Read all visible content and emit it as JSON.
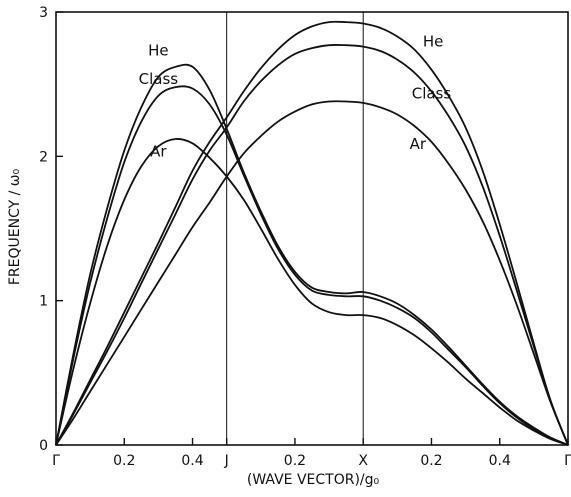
{
  "chart_data": {
    "type": "line",
    "title": "",
    "xlabel": "(WAVE VECTOR)/g₀",
    "ylabel": "FREQUENCY / ω₀",
    "ylim": [
      0,
      3
    ],
    "yticks": [
      0,
      1,
      2,
      3
    ],
    "xlim": [
      0,
      3
    ],
    "xticks": [
      {
        "x": 0,
        "label": "Γ"
      },
      {
        "x": 0.4,
        "label": "0.2"
      },
      {
        "x": 0.8,
        "label": "0.4"
      },
      {
        "x": 1.0,
        "label": "J"
      },
      {
        "x": 1.4,
        "label": "0.2"
      },
      {
        "x": 1.8,
        "label": "X"
      },
      {
        "x": 2.2,
        "label": "0.2"
      },
      {
        "x": 2.6,
        "label": "0.4"
      },
      {
        "x": 3.0,
        "label": "Γ"
      }
    ],
    "vlines": [
      1.0,
      1.8
    ],
    "grid": false,
    "legend": "none",
    "curve_labels": [
      {
        "text": "He",
        "x": 0.6,
        "y": 2.7
      },
      {
        "text": "Class",
        "x": 0.6,
        "y": 2.5
      },
      {
        "text": "Ar",
        "x": 0.6,
        "y": 2.0
      },
      {
        "text": "He",
        "x": 2.21,
        "y": 2.76
      },
      {
        "text": "Class",
        "x": 2.2,
        "y": 2.4
      },
      {
        "text": "Ar",
        "x": 2.12,
        "y": 2.05
      }
    ],
    "series": [
      {
        "x": [
          0,
          0.1,
          0.2,
          0.3,
          0.4,
          0.5,
          0.6,
          0.7,
          0.8,
          0.9,
          1.0,
          1.1,
          1.2,
          1.3,
          1.4,
          1.5,
          1.6,
          1.7,
          1.8,
          1.9,
          2.0,
          2.1,
          2.2,
          2.3,
          2.4,
          2.5,
          2.6,
          2.7,
          2.8,
          2.9,
          3.0
        ],
        "values": [
          0,
          0.62,
          1.18,
          1.64,
          2.04,
          2.34,
          2.55,
          2.62,
          2.62,
          2.46,
          2.19,
          1.89,
          1.62,
          1.38,
          1.2,
          1.09,
          1.06,
          1.05,
          1.06,
          1.03,
          0.98,
          0.9,
          0.8,
          0.68,
          0.55,
          0.42,
          0.3,
          0.2,
          0.12,
          0.05,
          0
        ]
      },
      {
        "x": [
          0,
          0.1,
          0.2,
          0.3,
          0.4,
          0.5,
          0.6,
          0.7,
          0.8,
          0.9,
          1.0,
          1.1,
          1.2,
          1.3,
          1.4,
          1.5,
          1.6,
          1.7,
          1.8,
          1.9,
          2.0,
          2.1,
          2.2,
          2.3,
          2.4,
          2.5,
          2.6,
          2.7,
          2.8,
          2.9,
          3.0
        ],
        "values": [
          0,
          0.59,
          1.12,
          1.57,
          1.96,
          2.24,
          2.42,
          2.48,
          2.47,
          2.36,
          2.15,
          1.87,
          1.6,
          1.36,
          1.18,
          1.07,
          1.04,
          1.03,
          1.03,
          1.0,
          0.95,
          0.88,
          0.78,
          0.66,
          0.54,
          0.41,
          0.29,
          0.19,
          0.11,
          0.05,
          0
        ]
      },
      {
        "x": [
          0,
          0.1,
          0.2,
          0.3,
          0.4,
          0.5,
          0.6,
          0.7,
          0.8,
          0.9,
          1.0,
          1.1,
          1.2,
          1.3,
          1.4,
          1.5,
          1.6,
          1.7,
          1.8,
          1.9,
          2.0,
          2.1,
          2.2,
          2.3,
          2.4,
          2.5,
          2.6,
          2.7,
          2.8,
          2.9,
          3.0
        ],
        "values": [
          0,
          0.52,
          0.98,
          1.38,
          1.7,
          1.93,
          2.07,
          2.12,
          2.09,
          1.99,
          1.86,
          1.7,
          1.5,
          1.29,
          1.11,
          0.98,
          0.92,
          0.9,
          0.9,
          0.88,
          0.83,
          0.76,
          0.67,
          0.57,
          0.46,
          0.36,
          0.26,
          0.17,
          0.1,
          0.04,
          0
        ]
      },
      {
        "x": [
          0,
          0.1,
          0.2,
          0.3,
          0.4,
          0.5,
          0.6,
          0.7,
          0.8,
          0.9,
          1.0,
          1.1,
          1.2,
          1.3,
          1.4,
          1.5,
          1.6,
          1.7,
          1.8,
          1.9,
          2.0,
          2.1,
          2.2,
          2.3,
          2.4,
          2.5,
          2.6,
          2.7,
          2.8,
          2.9,
          3.0
        ],
        "values": [
          0,
          0.22,
          0.45,
          0.68,
          0.92,
          1.16,
          1.4,
          1.65,
          1.9,
          2.1,
          2.27,
          2.45,
          2.61,
          2.74,
          2.84,
          2.9,
          2.93,
          2.93,
          2.92,
          2.89,
          2.83,
          2.74,
          2.6,
          2.42,
          2.2,
          1.9,
          1.53,
          1.12,
          0.7,
          0.3,
          0
        ]
      },
      {
        "x": [
          0,
          0.1,
          0.2,
          0.3,
          0.4,
          0.5,
          0.6,
          0.7,
          0.8,
          0.9,
          1.0,
          1.1,
          1.2,
          1.3,
          1.4,
          1.5,
          1.6,
          1.7,
          1.8,
          1.9,
          2.0,
          2.1,
          2.2,
          2.3,
          2.4,
          2.5,
          2.6,
          2.7,
          2.8,
          2.9,
          3.0
        ],
        "values": [
          0,
          0.21,
          0.43,
          0.65,
          0.88,
          1.12,
          1.36,
          1.6,
          1.84,
          2.04,
          2.2,
          2.38,
          2.52,
          2.63,
          2.71,
          2.75,
          2.77,
          2.77,
          2.76,
          2.73,
          2.67,
          2.58,
          2.45,
          2.28,
          2.07,
          1.79,
          1.45,
          1.07,
          0.68,
          0.3,
          0
        ]
      },
      {
        "x": [
          0,
          0.1,
          0.2,
          0.3,
          0.4,
          0.5,
          0.6,
          0.7,
          0.8,
          0.9,
          1.0,
          1.1,
          1.2,
          1.3,
          1.4,
          1.5,
          1.6,
          1.7,
          1.8,
          1.9,
          2.0,
          2.1,
          2.2,
          2.3,
          2.4,
          2.5,
          2.6,
          2.7,
          2.8,
          2.9,
          3.0
        ],
        "values": [
          0,
          0.18,
          0.37,
          0.56,
          0.75,
          0.94,
          1.13,
          1.32,
          1.51,
          1.68,
          1.86,
          2.02,
          2.14,
          2.24,
          2.31,
          2.36,
          2.38,
          2.38,
          2.37,
          2.34,
          2.29,
          2.21,
          2.1,
          1.95,
          1.77,
          1.55,
          1.28,
          0.97,
          0.63,
          0.29,
          0
        ]
      }
    ]
  }
}
